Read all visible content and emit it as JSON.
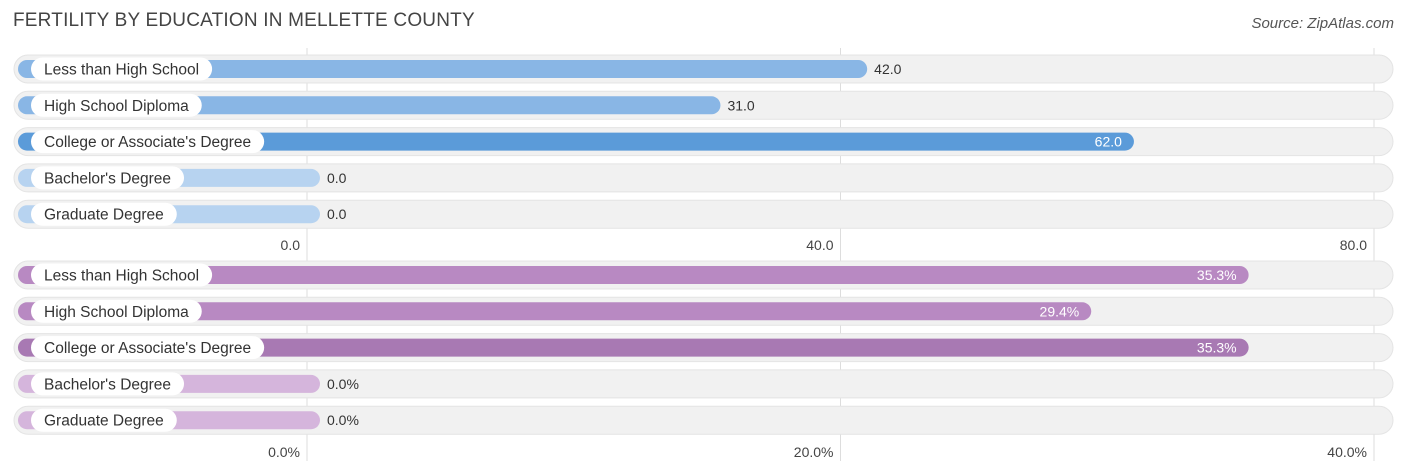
{
  "title": "FERTILITY BY EDUCATION IN MELLETTE COUNTY",
  "source": "Source: ZipAtlas.com",
  "colors": {
    "blue_strong": "#5b9bd9",
    "blue_medium": "#89b6e5",
    "blue_light": "#b7d3f0",
    "purple_strong": "#a879b3",
    "purple_medium": "#b889c2",
    "purple_light": "#d5b5dc",
    "track": "#f1f1f1"
  },
  "chart_data": [
    {
      "type": "bar",
      "orientation": "horizontal",
      "categories": [
        "Less than High School",
        "High School Diploma",
        "College or Associate's Degree",
        "Bachelor's Degree",
        "Graduate Degree"
      ],
      "values": [
        42.0,
        31.0,
        62.0,
        0.0,
        0.0
      ],
      "value_labels": [
        "42.0",
        "31.0",
        "62.0",
        "0.0",
        "0.0"
      ],
      "xlim": [
        0,
        80
      ],
      "ticks": [
        0,
        40,
        80
      ],
      "tick_labels": [
        "0.0",
        "40.0",
        "80.0"
      ],
      "palette": "blue"
    },
    {
      "type": "bar",
      "orientation": "horizontal",
      "categories": [
        "Less than High School",
        "High School Diploma",
        "College or Associate's Degree",
        "Bachelor's Degree",
        "Graduate Degree"
      ],
      "values": [
        35.3,
        29.4,
        35.3,
        0.0,
        0.0
      ],
      "value_labels": [
        "35.3%",
        "29.4%",
        "35.3%",
        "0.0%",
        "0.0%"
      ],
      "xlim": [
        0,
        40
      ],
      "ticks": [
        0,
        20,
        40
      ],
      "tick_labels": [
        "0.0%",
        "20.0%",
        "40.0%"
      ],
      "palette": "purple"
    }
  ]
}
